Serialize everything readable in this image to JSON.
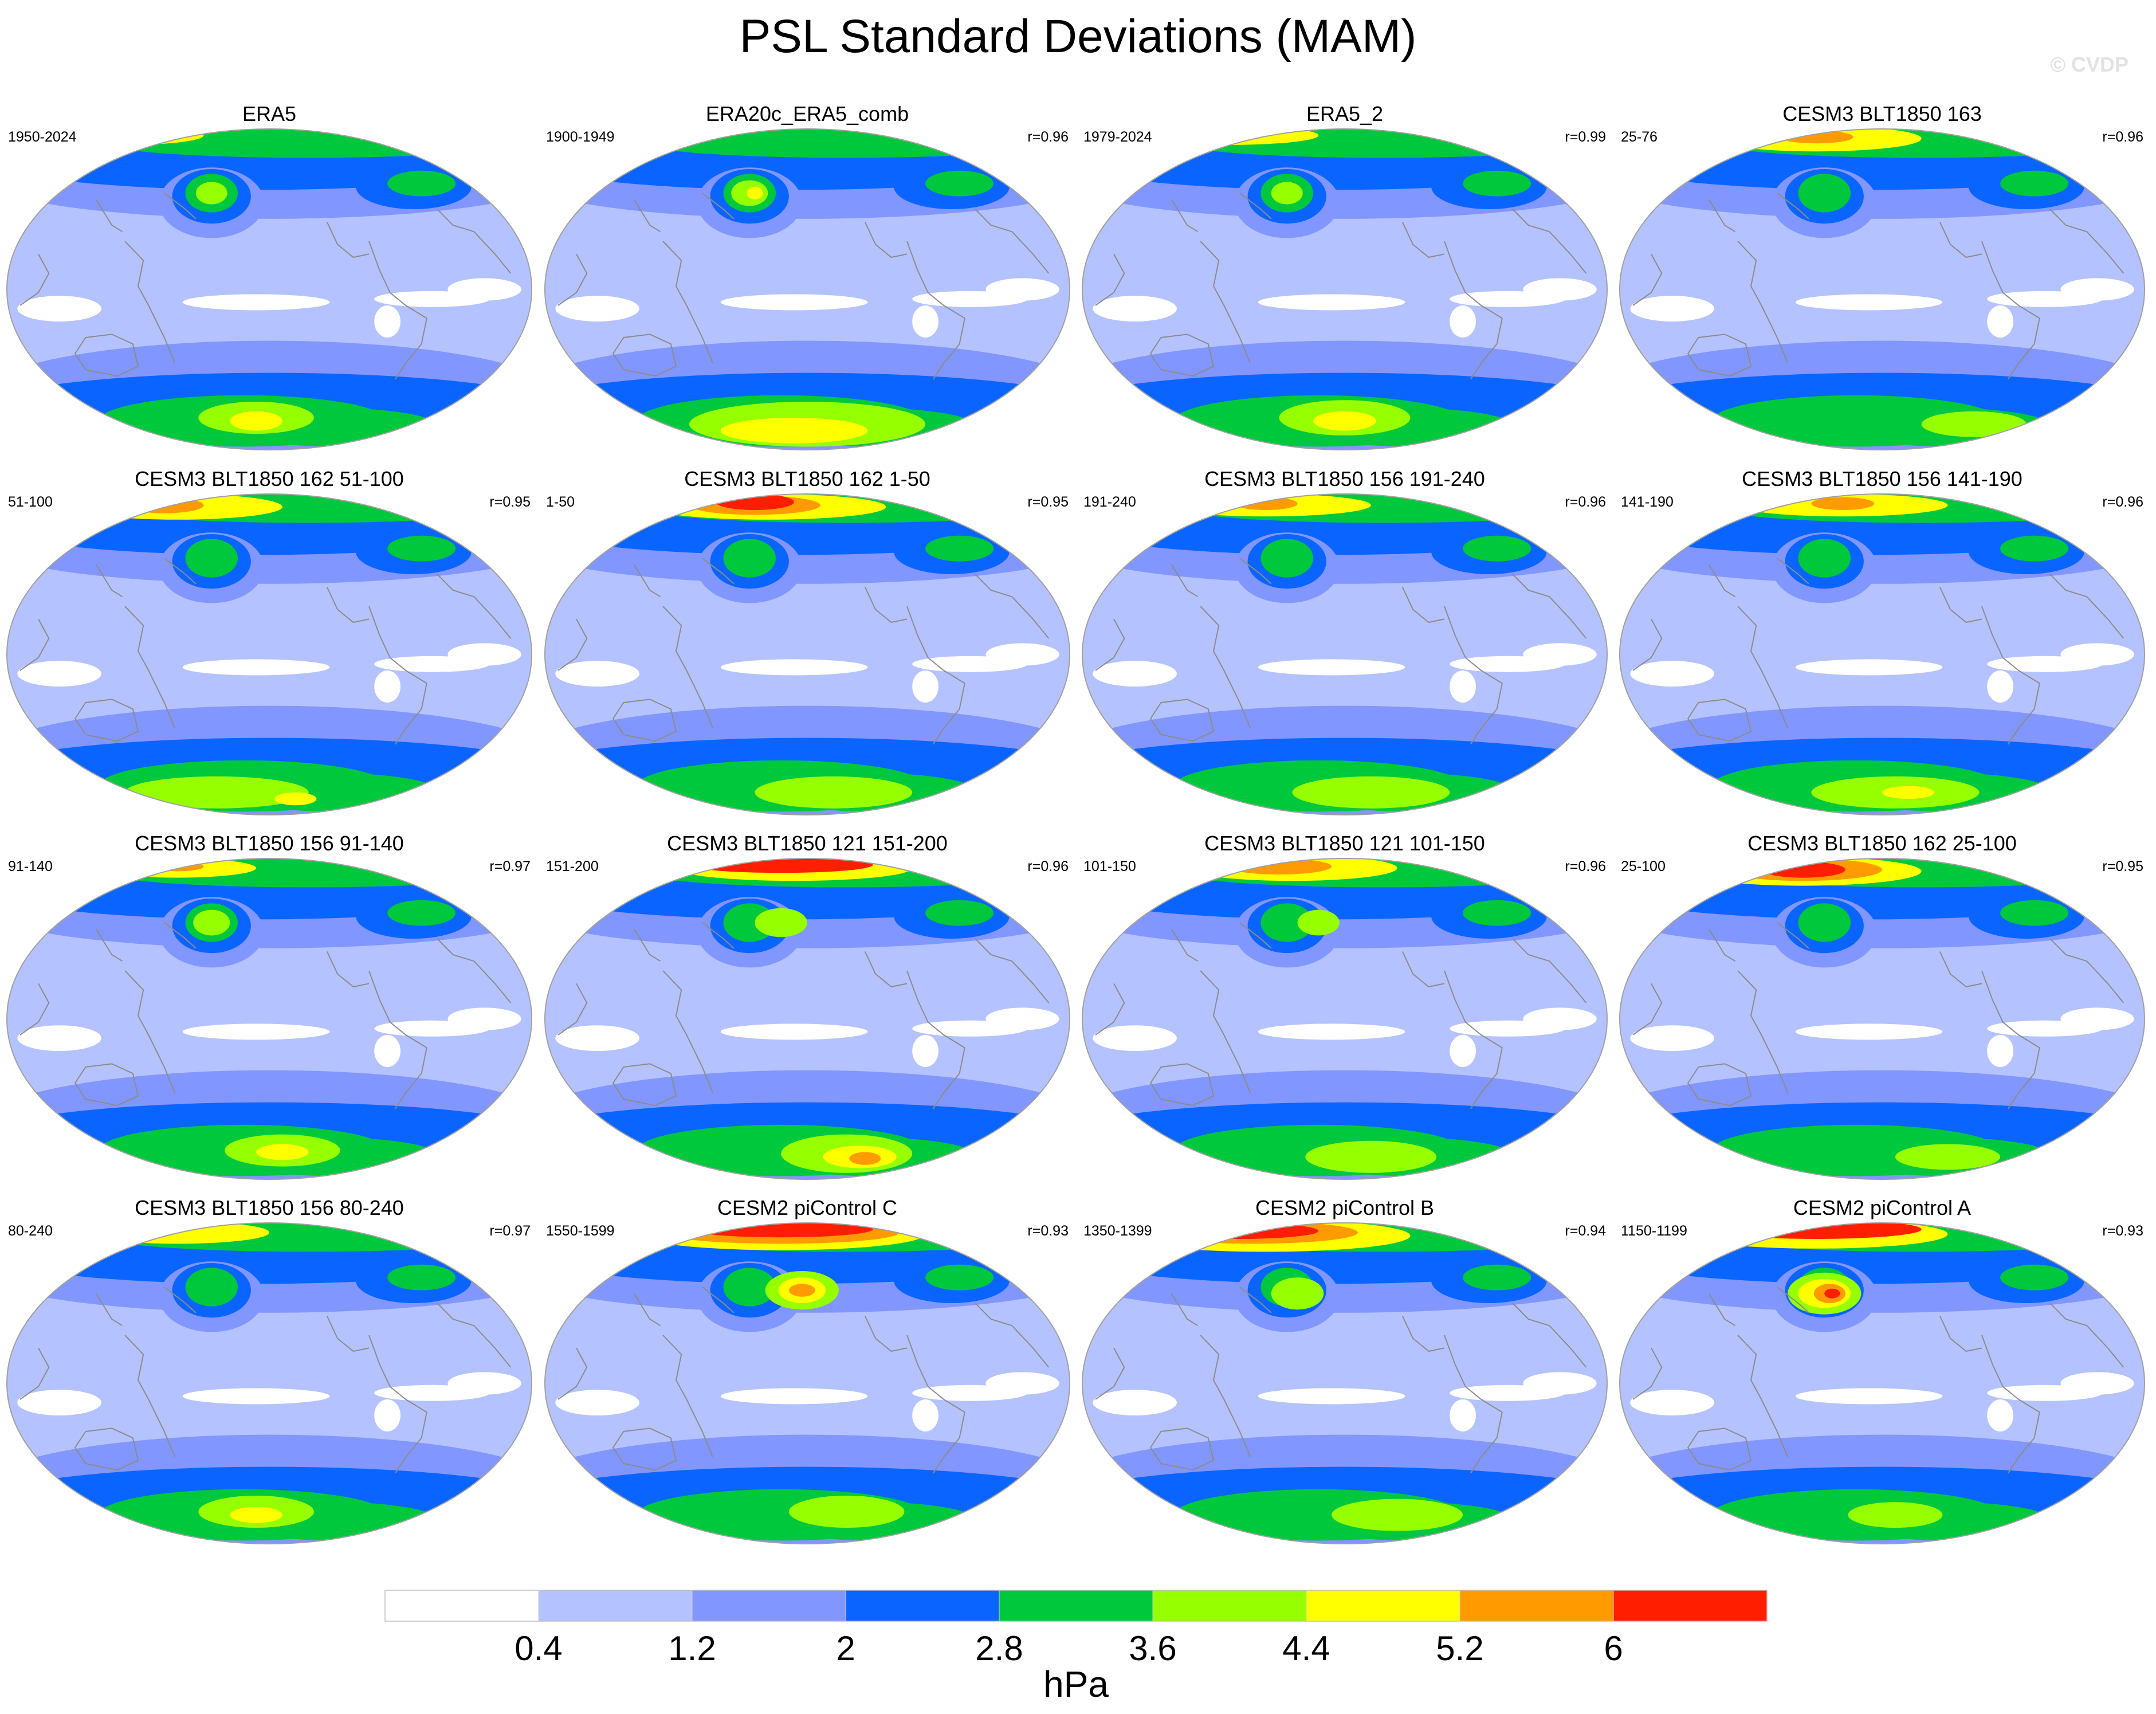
{
  "figure": {
    "title": "PSL Standard Deviations (MAM)",
    "watermark": "© CVDP"
  },
  "panels": [
    {
      "title": "ERA5",
      "period": "1950-2024",
      "r": ""
    },
    {
      "title": "ERA20c_ERA5_comb",
      "period": "1900-1949",
      "r": "r=0.96"
    },
    {
      "title": "ERA5_2",
      "period": "1979-2024",
      "r": "r=0.99"
    },
    {
      "title": "CESM3 BLT1850 163",
      "period": "25-76",
      "r": "r=0.96"
    },
    {
      "title": "CESM3 BLT1850 162 51-100",
      "period": "51-100",
      "r": "r=0.95"
    },
    {
      "title": "CESM3 BLT1850 162 1-50",
      "period": "1-50",
      "r": "r=0.95"
    },
    {
      "title": "CESM3 BLT1850 156 191-240",
      "period": "191-240",
      "r": "r=0.96"
    },
    {
      "title": "CESM3 BLT1850 156 141-190",
      "period": "141-190",
      "r": "r=0.96"
    },
    {
      "title": "CESM3 BLT1850 156 91-140",
      "period": "91-140",
      "r": "r=0.97"
    },
    {
      "title": "CESM3 BLT1850 121 151-200",
      "period": "151-200",
      "r": "r=0.96"
    },
    {
      "title": "CESM3 BLT1850 121 101-150",
      "period": "101-150",
      "r": "r=0.96"
    },
    {
      "title": "CESM3 BLT1850 162 25-100",
      "period": "25-100",
      "r": "r=0.95"
    },
    {
      "title": "CESM3 BLT1850 156 80-240",
      "period": "80-240",
      "r": "r=0.97"
    },
    {
      "title": "CESM2 piControl C",
      "period": "1550-1599",
      "r": "r=0.93"
    },
    {
      "title": "CESM2 piControl B",
      "period": "1350-1399",
      "r": "r=0.94"
    },
    {
      "title": "CESM2 piControl A",
      "period": "1150-1199",
      "r": "r=0.93"
    }
  ],
  "colorbar": {
    "colors": [
      "#ffffff",
      "#b4c3ff",
      "#8296ff",
      "#0a64ff",
      "#00c83c",
      "#96ff00",
      "#ffff00",
      "#ff9b00",
      "#ff1e00"
    ],
    "labels": [
      "0.4",
      "1.2",
      "2",
      "2.8",
      "3.6",
      "4.4",
      "5.2",
      "6"
    ],
    "unit": "hPa"
  },
  "map_style": {
    "coastline_color": "#8c8c8c",
    "outline_color": "#a0a0a0"
  }
}
